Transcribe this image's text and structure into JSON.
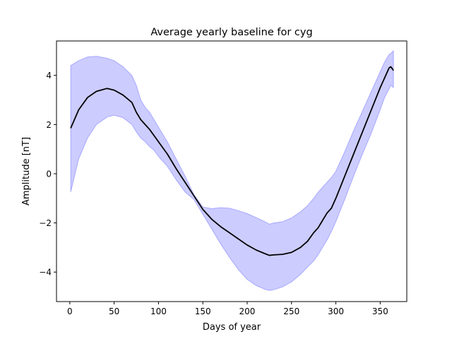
{
  "chart_data": {
    "type": "line",
    "title": "Average yearly baseline for cyg",
    "xlabel": "Days of year",
    "ylabel": "Amplitude [nT]",
    "xlim": [
      -15,
      380
    ],
    "ylim": [
      -5.2,
      5.4
    ],
    "xticks": [
      0,
      50,
      100,
      150,
      200,
      250,
      300,
      350
    ],
    "yticks": [
      -4,
      -2,
      0,
      2,
      4
    ],
    "grid": false,
    "legend": "none",
    "colors": {
      "line": "#000000",
      "band": "#0000ff",
      "band_alpha": 0.2
    },
    "series": [
      {
        "x": [
          1,
          10,
          20,
          30,
          42,
          50,
          60,
          70,
          75,
          80,
          85,
          90,
          95,
          100,
          110,
          120,
          130,
          140,
          150,
          160,
          170,
          180,
          190,
          200,
          210,
          220,
          225,
          230,
          240,
          250,
          260,
          268,
          275,
          280,
          285,
          290,
          295,
          300,
          310,
          320,
          330,
          340,
          350,
          355,
          360,
          362,
          365
        ],
        "y": [
          1.85,
          2.6,
          3.1,
          3.35,
          3.47,
          3.4,
          3.2,
          2.9,
          2.5,
          2.2,
          2.0,
          1.8,
          1.55,
          1.3,
          0.8,
          0.2,
          -0.35,
          -0.9,
          -1.45,
          -1.85,
          -2.15,
          -2.4,
          -2.65,
          -2.9,
          -3.1,
          -3.25,
          -3.32,
          -3.3,
          -3.28,
          -3.2,
          -3.0,
          -2.75,
          -2.4,
          -2.2,
          -1.9,
          -1.6,
          -1.4,
          -1.0,
          -0.1,
          0.8,
          1.7,
          2.6,
          3.5,
          3.9,
          4.3,
          4.35,
          4.2
        ]
      }
    ],
    "band": {
      "x": [
        1,
        10,
        20,
        30,
        42,
        50,
        60,
        70,
        75,
        80,
        85,
        90,
        95,
        100,
        110,
        120,
        130,
        140,
        150,
        160,
        170,
        180,
        190,
        200,
        210,
        220,
        225,
        230,
        240,
        250,
        260,
        268,
        275,
        280,
        285,
        290,
        295,
        300,
        310,
        320,
        330,
        340,
        350,
        355,
        360,
        362,
        365
      ],
      "upper": [
        4.4,
        4.6,
        4.75,
        4.78,
        4.7,
        4.6,
        4.35,
        4.0,
        3.6,
        3.0,
        2.7,
        2.5,
        2.2,
        1.9,
        1.3,
        0.6,
        -0.1,
        -0.85,
        -1.35,
        -1.42,
        -1.38,
        -1.4,
        -1.5,
        -1.62,
        -1.78,
        -1.95,
        -2.05,
        -2.0,
        -1.95,
        -1.8,
        -1.55,
        -1.3,
        -1.0,
        -0.75,
        -0.55,
        -0.35,
        -0.15,
        0.1,
        0.9,
        1.75,
        2.55,
        3.35,
        4.15,
        4.55,
        4.85,
        4.9,
        5.0
      ],
      "lower": [
        -0.75,
        0.6,
        1.45,
        2.0,
        2.3,
        2.38,
        2.28,
        2.0,
        1.7,
        1.45,
        1.3,
        1.1,
        0.95,
        0.7,
        0.3,
        -0.25,
        -0.75,
        -1.05,
        -1.65,
        -2.25,
        -2.85,
        -3.4,
        -3.9,
        -4.3,
        -4.55,
        -4.7,
        -4.75,
        -4.72,
        -4.6,
        -4.4,
        -4.1,
        -3.8,
        -3.55,
        -3.3,
        -3.0,
        -2.7,
        -2.35,
        -1.95,
        -1.05,
        -0.1,
        0.8,
        1.65,
        2.6,
        3.1,
        3.45,
        3.6,
        3.5
      ]
    }
  }
}
